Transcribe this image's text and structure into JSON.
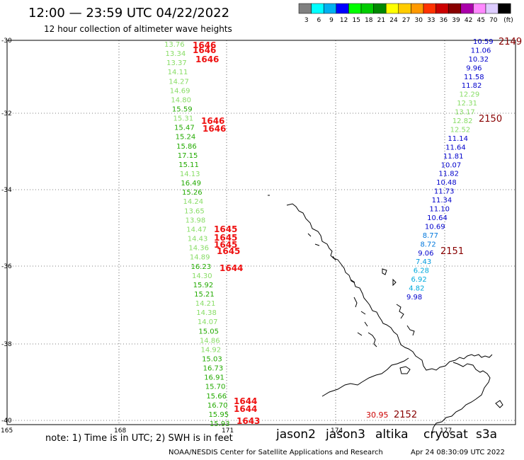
{
  "header": {
    "title": "12:00 — 23:59 UTC 04/22/2022",
    "subtitle": "12 hour collection of altimeter wave heights"
  },
  "legend": {
    "unit": "(ft)",
    "bins": [
      {
        "label": "3",
        "color": "#808080"
      },
      {
        "label": "6",
        "color": "#00ffff"
      },
      {
        "label": "9",
        "color": "#00b0f0"
      },
      {
        "label": "12",
        "color": "#0000ff"
      },
      {
        "label": "15",
        "color": "#00ff00"
      },
      {
        "label": "18",
        "color": "#00cc00"
      },
      {
        "label": "21",
        "color": "#008800"
      },
      {
        "label": "24",
        "color": "#ffff00"
      },
      {
        "label": "27",
        "color": "#ffcc00"
      },
      {
        "label": "30",
        "color": "#ff9900"
      },
      {
        "label": "33",
        "color": "#ff3300"
      },
      {
        "label": "36",
        "color": "#cc0000"
      },
      {
        "label": "39",
        "color": "#880000"
      },
      {
        "label": "42",
        "color": "#aa00aa"
      },
      {
        "label": "45",
        "color": "#ff88ff"
      },
      {
        "label": "70",
        "color": "#ddccff"
      },
      {
        "label": "",
        "color": "#000000"
      }
    ]
  },
  "map": {
    "lat_labels": [
      "-30",
      "-32",
      "-34",
      "-36",
      "-38",
      "-40"
    ],
    "lon_labels": [
      "165",
      "168",
      "171",
      "174",
      "177"
    ]
  },
  "tracks": {
    "west": [
      {
        "v": "13.76",
        "c": "#88dd66"
      },
      {
        "v": "13.34",
        "c": "#88dd66"
      },
      {
        "v": "13.37",
        "c": "#88dd66"
      },
      {
        "v": "14.11",
        "c": "#88dd66"
      },
      {
        "v": "14.27",
        "c": "#88dd66"
      },
      {
        "v": "14.69",
        "c": "#88dd66"
      },
      {
        "v": "14.80",
        "c": "#88dd66"
      },
      {
        "v": "15.59",
        "c": "#22aa00"
      },
      {
        "v": "15.31",
        "c": "#88dd66"
      },
      {
        "v": "15.47",
        "c": "#22aa00"
      },
      {
        "v": "15.24",
        "c": "#22aa00"
      },
      {
        "v": "15.86",
        "c": "#22aa00"
      },
      {
        "v": "17.15",
        "c": "#22aa00"
      },
      {
        "v": "15.11",
        "c": "#22aa00"
      },
      {
        "v": "14.13",
        "c": "#88dd66"
      },
      {
        "v": "16.49",
        "c": "#22aa00"
      },
      {
        "v": "15.26",
        "c": "#22aa00"
      },
      {
        "v": "14.24",
        "c": "#88dd66"
      },
      {
        "v": "13.65",
        "c": "#88dd66"
      },
      {
        "v": "13.98",
        "c": "#88dd66"
      },
      {
        "v": "14.47",
        "c": "#88dd66"
      },
      {
        "v": "14.43",
        "c": "#88dd66"
      },
      {
        "v": "14.36",
        "c": "#88dd66"
      },
      {
        "v": "14.89",
        "c": "#88dd66"
      },
      {
        "v": "16.23",
        "c": "#22aa00"
      },
      {
        "v": "14.30",
        "c": "#88dd66"
      },
      {
        "v": "15.92",
        "c": "#22aa00"
      },
      {
        "v": "15.21",
        "c": "#22aa00"
      },
      {
        "v": "14.21",
        "c": "#88dd66"
      },
      {
        "v": "14.38",
        "c": "#88dd66"
      },
      {
        "v": "14.07",
        "c": "#88dd66"
      },
      {
        "v": "15.05",
        "c": "#22aa00"
      },
      {
        "v": "14.86",
        "c": "#88dd66"
      },
      {
        "v": "14.92",
        "c": "#88dd66"
      },
      {
        "v": "15.03",
        "c": "#22aa00"
      },
      {
        "v": "16.73",
        "c": "#22aa00"
      },
      {
        "v": "16.91",
        "c": "#22aa00"
      },
      {
        "v": "15.70",
        "c": "#22aa00"
      },
      {
        "v": "15.66",
        "c": "#22aa00"
      },
      {
        "v": "16.70",
        "c": "#22aa00"
      },
      {
        "v": "15.95",
        "c": "#22aa00"
      },
      {
        "v": "15.93",
        "c": "#22aa00"
      }
    ],
    "west_times": [
      {
        "v": "1646"
      },
      {
        "v": "1646"
      },
      {
        "v": "1646"
      },
      {
        "v": "1646"
      },
      {
        "v": "1646"
      },
      {
        "v": "1645"
      },
      {
        "v": "1645"
      },
      {
        "v": "1645"
      },
      {
        "v": "1645"
      },
      {
        "v": "1644"
      },
      {
        "v": "1644"
      },
      {
        "v": "1644"
      },
      {
        "v": "1643"
      }
    ],
    "east": [
      {
        "v": "10.59",
        "c": "#0000cc"
      },
      {
        "v": "11.06",
        "c": "#0000cc"
      },
      {
        "v": "10.32",
        "c": "#0000cc"
      },
      {
        "v": "9.96",
        "c": "#0000cc"
      },
      {
        "v": "11.58",
        "c": "#0000cc"
      },
      {
        "v": "11.82",
        "c": "#0000cc"
      },
      {
        "v": "12.29",
        "c": "#88dd66"
      },
      {
        "v": "12.31",
        "c": "#88dd66"
      },
      {
        "v": "13.17",
        "c": "#88dd66"
      },
      {
        "v": "12.82",
        "c": "#88dd66"
      },
      {
        "v": "12.52",
        "c": "#88dd66"
      },
      {
        "v": "11.14",
        "c": "#0000cc"
      },
      {
        "v": "11.64",
        "c": "#0000cc"
      },
      {
        "v": "11.81",
        "c": "#0000cc"
      },
      {
        "v": "10.07",
        "c": "#0000cc"
      },
      {
        "v": "11.82",
        "c": "#0000cc"
      },
      {
        "v": "10.48",
        "c": "#0000cc"
      },
      {
        "v": "11.73",
        "c": "#0000cc"
      },
      {
        "v": "11.34",
        "c": "#0000cc"
      },
      {
        "v": "11.10",
        "c": "#0000cc"
      },
      {
        "v": "10.64",
        "c": "#0000cc"
      },
      {
        "v": "10.69",
        "c": "#0000cc"
      },
      {
        "v": "8.77",
        "c": "#0077dd"
      },
      {
        "v": "8.72",
        "c": "#0077dd"
      },
      {
        "v": "9.06",
        "c": "#0000cc"
      },
      {
        "v": "7.43",
        "c": "#0099dd"
      },
      {
        "v": "6.28",
        "c": "#00aadd"
      },
      {
        "v": "6.92",
        "c": "#00aadd"
      },
      {
        "v": "4.82",
        "c": "#00aadd"
      },
      {
        "v": "9.98",
        "c": "#0000cc"
      }
    ],
    "east_times": [
      {
        "v": "2149"
      },
      {
        "v": "2150"
      },
      {
        "v": "2151"
      }
    ],
    "south": {
      "v": "30.95",
      "time": "2152"
    }
  },
  "footer": {
    "note": "note: 1) Time is in UTC; 2) SWH is in feet",
    "satellites": [
      {
        "name": "jason2",
        "color": "#0000ff"
      },
      {
        "name": "jason3",
        "color": "#00aa00"
      },
      {
        "name": "altika",
        "color": "#ff9900"
      },
      {
        "name": "cryosat",
        "color": "#ff3300"
      },
      {
        "name": "s3a",
        "color": "#880000"
      }
    ],
    "credit": "NOAA/NESDIS Center for Satellite Applications and Research",
    "generated": "Apr 24 08:30:09 UTC 2022"
  }
}
